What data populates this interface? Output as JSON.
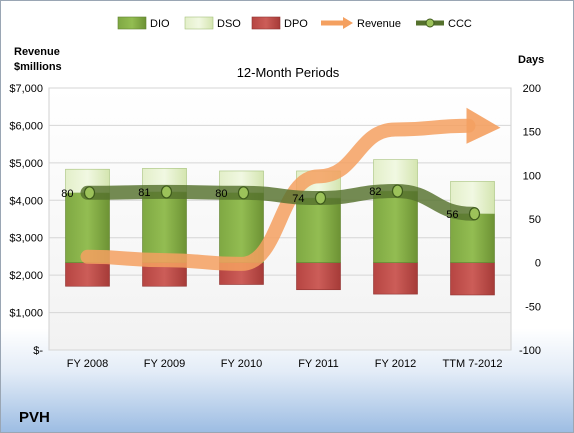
{
  "chart_data": {
    "type": "bar",
    "title": "12-Month Periods",
    "company": "PVH",
    "categories": [
      "FY 2008",
      "FY 2009",
      "FY 2010",
      "FY 2011",
      "FY 2012",
      "TTM 7-2012"
    ],
    "left_axis": {
      "title_line1": "Revenue",
      "title_line2": "$millions",
      "range": [
        0,
        7000
      ],
      "ticks": [
        0,
        1000,
        2000,
        3000,
        4000,
        5000,
        6000,
        7000
      ],
      "tick_labels": [
        "$-",
        "$1,000",
        "$2,000",
        "$3,000",
        "$4,000",
        "$5,000",
        "$6,000",
        "$7,000"
      ]
    },
    "right_axis": {
      "title": "Days",
      "range": [
        -100,
        200
      ],
      "ticks": [
        -100,
        -50,
        0,
        50,
        100,
        150,
        200
      ],
      "tick_labels": [
        "-100",
        "-50",
        "0",
        "50",
        "100",
        "150",
        "200"
      ]
    },
    "series": [
      {
        "name": "DIO",
        "axis": "right",
        "kind": "stacked-bar",
        "values": [
          80,
          81,
          80,
          74,
          82,
          56
        ],
        "color": "#7aa23a"
      },
      {
        "name": "DSO",
        "axis": "right",
        "kind": "stacked-bar",
        "values": [
          27,
          27,
          25,
          31,
          36,
          37
        ],
        "color": "#d6e8b4"
      },
      {
        "name": "DPO",
        "axis": "right",
        "kind": "negative-bar",
        "values": [
          -27,
          -27,
          -25,
          -31,
          -36,
          -37
        ],
        "color": "#c0504d"
      },
      {
        "name": "Revenue",
        "axis": "left",
        "kind": "arrow-line",
        "values": [
          2490,
          2400,
          2300,
          4640,
          5890,
          5990
        ],
        "color": "#f4a060"
      },
      {
        "name": "CCC",
        "axis": "right",
        "kind": "line",
        "values": [
          80,
          81,
          80,
          74,
          82,
          56
        ],
        "labels": [
          "80",
          "81",
          "80",
          "74",
          "82",
          "56"
        ],
        "color": "#4f6b28"
      }
    ],
    "grid": true,
    "legend": "top"
  }
}
